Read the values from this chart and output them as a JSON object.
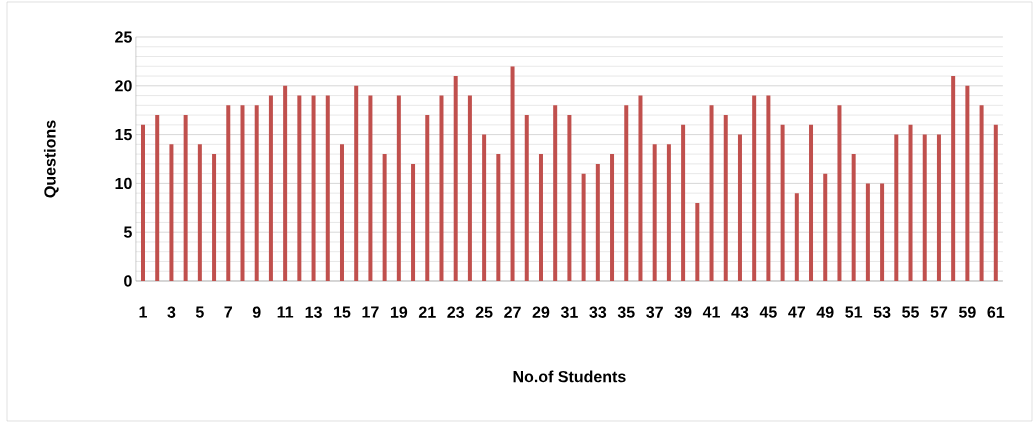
{
  "chart_data": {
    "type": "bar",
    "xlabel": "No.of Students",
    "ylabel": "Questions",
    "categories": [
      "1",
      null,
      "3",
      null,
      "5",
      null,
      "7",
      null,
      "9",
      null,
      "11",
      null,
      "13",
      null,
      "15",
      null,
      "17",
      null,
      "19",
      null,
      "21",
      null,
      "23",
      null,
      "25",
      null,
      "27",
      null,
      "29",
      null,
      "31",
      null,
      "33",
      null,
      "35",
      null,
      "37",
      null,
      "39",
      null,
      "41",
      null,
      "43",
      null,
      "45",
      null,
      "47",
      null,
      "49",
      null,
      "51",
      null,
      "53",
      null,
      "55",
      null,
      "57",
      null,
      "59",
      null,
      "61"
    ],
    "values": [
      16,
      17,
      14,
      17,
      14,
      13,
      18,
      18,
      18,
      19,
      20,
      19,
      19,
      19,
      14,
      20,
      19,
      13,
      19,
      12,
      17,
      19,
      21,
      19,
      15,
      13,
      22,
      17,
      13,
      18,
      17,
      11,
      12,
      13,
      18,
      19,
      14,
      14,
      16,
      8,
      18,
      17,
      15,
      19,
      19,
      16,
      9,
      16,
      11,
      18,
      13,
      10,
      10,
      15,
      16,
      15,
      15,
      21,
      20,
      18,
      16
    ],
    "color": "#c0504d",
    "ylim": [
      0,
      25
    ],
    "yticks": [
      0,
      5,
      10,
      15,
      20,
      25
    ],
    "grid": "y"
  }
}
